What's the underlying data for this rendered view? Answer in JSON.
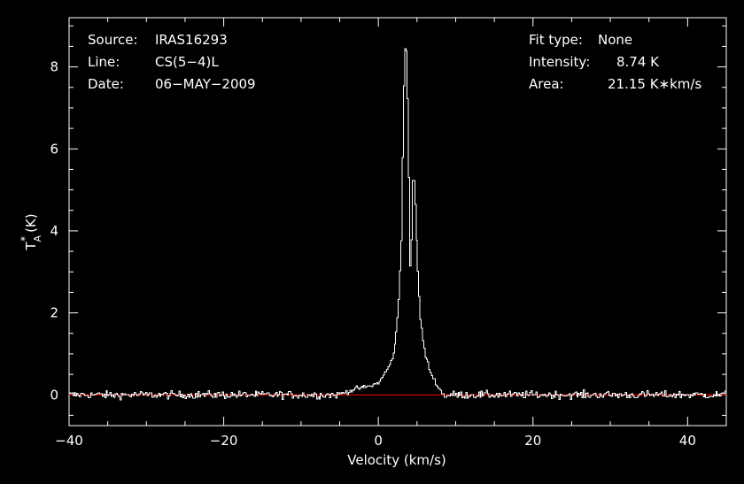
{
  "colors": {
    "background": "#000000",
    "axes": "#ffffff",
    "spectrum": "#ffffff",
    "baseline": "#ff0000"
  },
  "info_left": [
    {
      "label": "Source:",
      "value": "IRAS16293"
    },
    {
      "label": "Line:",
      "value": "CS(5−4)L"
    },
    {
      "label": "Date:",
      "value": "06−MAY−2009"
    }
  ],
  "info_right": [
    {
      "label": "Fit type:",
      "value": "None"
    },
    {
      "label": "Intensity:",
      "value": "8.74 K"
    },
    {
      "label": "Area:",
      "value": "21.15 K∗km/s"
    }
  ],
  "chart_data": {
    "type": "line",
    "xlabel": "Velocity (km/s)",
    "ylabel_main": "T",
    "ylabel_sup": "*",
    "ylabel_sub": "A",
    "ylabel_unit": "(K)",
    "xlim": [
      -40,
      45
    ],
    "ylim": [
      -0.75,
      9.2
    ],
    "x_ticks": [
      -40,
      -20,
      0,
      20,
      40
    ],
    "x_tick_labels": [
      "−40",
      "−20",
      "0",
      "20",
      "40"
    ],
    "y_ticks": [
      0,
      2,
      4,
      6,
      8
    ],
    "y_tick_labels": [
      "0",
      "2",
      "4",
      "6",
      "8"
    ],
    "x_minor_step": 5,
    "y_minor_step": 0.5,
    "baseline": 0,
    "series": [
      {
        "style": "steps",
        "x": [
          -5.5,
          -4.0,
          -3.0,
          -2.0,
          -1.0,
          0.0,
          0.5,
          1.0,
          1.5,
          2.0,
          2.3,
          2.6,
          2.9,
          3.1,
          3.3,
          3.5,
          3.7,
          3.9,
          4.1,
          4.2,
          4.4,
          4.6,
          4.8,
          5.0,
          5.2,
          5.4,
          5.6,
          5.8,
          6.0,
          6.3,
          6.6,
          6.9,
          7.2,
          7.5,
          7.8,
          8.2,
          8.6,
          9.0
        ],
        "y": [
          0.0,
          0.08,
          0.15,
          0.18,
          0.22,
          0.3,
          0.45,
          0.6,
          0.75,
          1.1,
          1.6,
          2.4,
          3.8,
          6.2,
          8.3,
          8.74,
          7.5,
          5.2,
          2.6,
          3.6,
          5.3,
          5.2,
          4.2,
          3.2,
          2.4,
          1.8,
          1.5,
          1.2,
          0.95,
          0.8,
          0.6,
          0.45,
          0.35,
          0.25,
          0.15,
          0.05,
          -0.05,
          0.0
        ]
      }
    ],
    "noise_rms": 0.08
  }
}
